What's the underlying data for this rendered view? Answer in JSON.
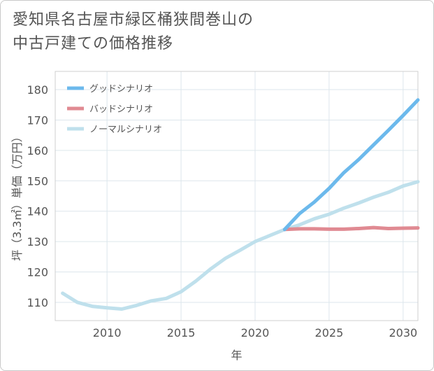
{
  "title": "愛知県名古屋市緑区桶狭間巻山の\n中古戸建ての価格推移",
  "chart_data": {
    "type": "line",
    "xlabel": "年",
    "ylabel": "坪（3.3㎡）単価（万円）",
    "xlim": [
      2006.5,
      2031
    ],
    "ylim": [
      104,
      186
    ],
    "xticks": [
      2010,
      2015,
      2020,
      2025,
      2030
    ],
    "yticks": [
      110,
      120,
      130,
      140,
      150,
      160,
      170,
      180
    ],
    "grid": true,
    "legend_position": "top-left",
    "series": [
      {
        "name": "グッドシナリオ",
        "color": "#6cb9ec",
        "x": [
          2022,
          2023,
          2024,
          2025,
          2026,
          2027,
          2028,
          2029,
          2030,
          2031
        ],
        "y": [
          134,
          139.2,
          143,
          147.5,
          152.7,
          157,
          161.8,
          166.6,
          171.5,
          176.6
        ]
      },
      {
        "name": "バッドシナリオ",
        "color": "#e08a92",
        "x": [
          2022,
          2023,
          2024,
          2025,
          2026,
          2027,
          2028,
          2029,
          2030,
          2031
        ],
        "y": [
          134,
          134.2,
          134.2,
          134.1,
          134.1,
          134.3,
          134.6,
          134.3,
          134.4,
          134.5
        ]
      },
      {
        "name": "ノーマルシナリオ",
        "color": "#bfe0ec",
        "x": [
          2007,
          2008,
          2009,
          2010,
          2011,
          2012,
          2013,
          2014,
          2015,
          2016,
          2017,
          2018,
          2019,
          2020,
          2021,
          2022,
          2023,
          2024,
          2025,
          2026,
          2027,
          2028,
          2029,
          2030,
          2031
        ],
        "y": [
          113,
          110,
          108.7,
          108.2,
          107.8,
          109,
          110.5,
          111.3,
          113.5,
          117,
          121,
          124.5,
          127.2,
          130,
          132,
          134,
          135.5,
          137.5,
          139,
          141,
          142.7,
          144.6,
          146.2,
          148.3,
          149.7
        ]
      }
    ]
  }
}
